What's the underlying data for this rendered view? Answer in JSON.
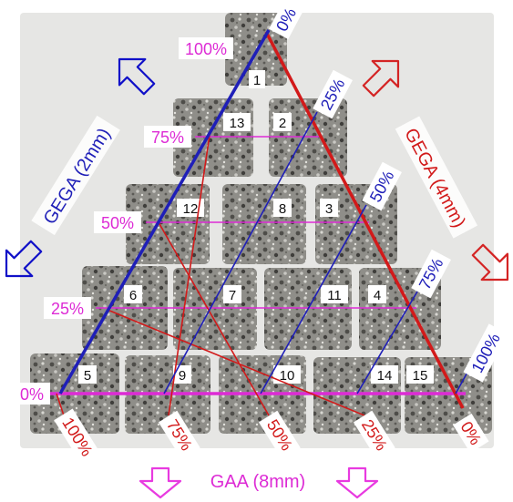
{
  "colors": {
    "background": "#e9e9e7",
    "sample": "#8c8b86",
    "sample_dark": "#5f5e5a",
    "blue": "#1f1fb8",
    "red": "#d21a1a",
    "magenta": "#dd2bd5",
    "arrow_blue": "#1010c8",
    "arrow_red": "#d42424",
    "arrow_magenta": "#e83ae0"
  },
  "axes": {
    "gega2": {
      "label": "GEGA (2mm)",
      "ticks": [
        "100%",
        "75%",
        "50%",
        "25%",
        "0%"
      ]
    },
    "gega4": {
      "label": "GEGA (4mm)",
      "ticks": [
        "0%",
        "25%",
        "50%",
        "75%",
        "100%"
      ]
    },
    "gaa8": {
      "label": "GAA (8mm)",
      "ticks": [
        "100%",
        "75%",
        "50%",
        "25%",
        "0%"
      ]
    }
  },
  "samples": [
    "1",
    "2",
    "3",
    "4",
    "5",
    "6",
    "7",
    "8",
    "9",
    "10",
    "11",
    "12",
    "13",
    "14",
    "15"
  ],
  "icons": {
    "arrow_gega2": "hollow-arrow-up-left-icon",
    "arrow_gega2_bottom": "hollow-arrow-down-left-icon",
    "arrow_gega4": "hollow-arrow-up-right-icon",
    "arrow_gega4_bottom": "hollow-arrow-down-right-icon",
    "arrow_gaa_left": "hollow-arrow-down-icon",
    "arrow_gaa_right": "hollow-arrow-down-icon"
  }
}
